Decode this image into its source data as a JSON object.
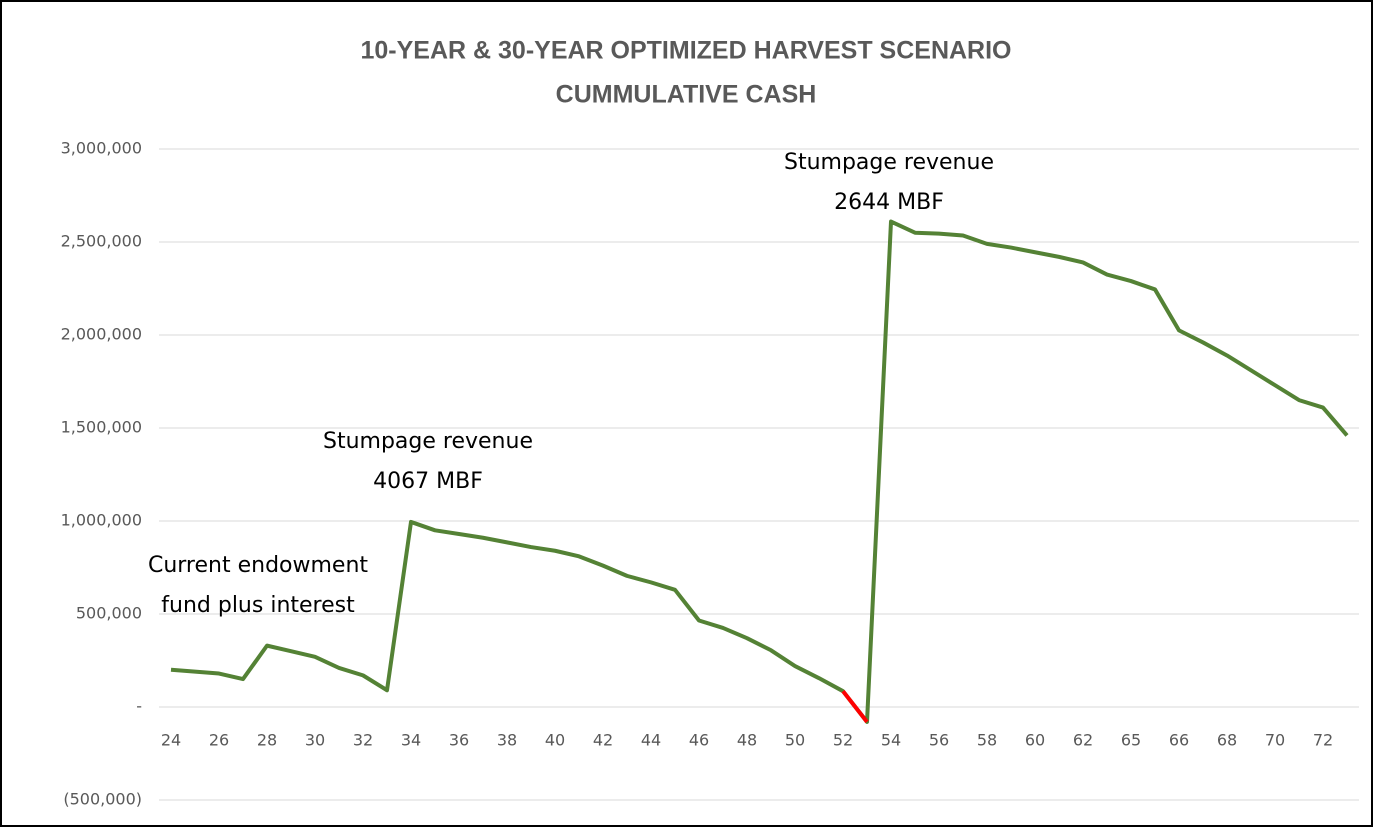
{
  "chart_data": {
    "type": "line",
    "title": [
      "10-YEAR & 30-YEAR OPTIMIZED HARVEST SCENARIO",
      "CUMMULATIVE CASH"
    ],
    "categories": [
      "24",
      null,
      "26",
      null,
      "28",
      null,
      "30",
      null,
      "32",
      null,
      "34",
      null,
      "36",
      null,
      "38",
      null,
      "40",
      null,
      "42",
      null,
      "44",
      null,
      "46",
      null,
      "48",
      null,
      "50",
      null,
      "52",
      null,
      "54",
      null,
      "56",
      null,
      "58",
      null,
      "60",
      null,
      "62",
      null,
      "65",
      null,
      "66",
      null,
      "68",
      null,
      "70",
      null,
      "72",
      null
    ],
    "series": [
      {
        "color": "#548235",
        "values": [
          200000,
          190000,
          180000,
          150000,
          330000,
          300000,
          270000,
          210000,
          170000,
          90000,
          995000,
          950000,
          930000,
          910000,
          885000,
          860000,
          840000,
          810000,
          760000,
          705000,
          670000,
          630000,
          465000,
          425000,
          370000,
          305000,
          220000,
          155000,
          85000,
          -80000,
          2610000,
          2550000,
          2545000,
          2535000,
          2490000,
          2470000,
          2445000,
          2420000,
          2390000,
          2325000,
          2290000,
          2245000,
          2025000,
          1960000,
          1890000,
          1810000,
          1730000,
          1650000,
          1610000,
          1460000
        ]
      },
      {
        "color": "#ff0000",
        "values": [
          null,
          null,
          null,
          null,
          null,
          null,
          null,
          null,
          null,
          null,
          null,
          null,
          null,
          null,
          null,
          null,
          null,
          null,
          null,
          null,
          null,
          null,
          null,
          null,
          null,
          null,
          null,
          null,
          85000,
          -80000,
          null,
          null,
          null,
          null,
          null,
          null,
          null,
          null,
          null,
          null,
          null,
          null,
          null,
          null,
          null,
          null,
          null,
          null,
          null,
          null
        ]
      }
    ],
    "ylim": [
      -500000,
      3000000
    ],
    "yticks": [
      {
        "value": -500000,
        "label": "(500,000)"
      },
      {
        "value": 0,
        "label": "-"
      },
      {
        "value": 500000,
        "label": "500,000"
      },
      {
        "value": 1000000,
        "label": "1,000,000"
      },
      {
        "value": 1500000,
        "label": "1,500,000"
      },
      {
        "value": 2000000,
        "label": "2,000,000"
      },
      {
        "value": 2500000,
        "label": "2,500,000"
      },
      {
        "value": 3000000,
        "label": "3,000,000"
      }
    ],
    "grid": true,
    "annotations": [
      {
        "lines": [
          "Current endowment",
          "fund plus interest"
        ]
      },
      {
        "lines": [
          "Stumpage revenue",
          "4067 MBF"
        ]
      },
      {
        "lines": [
          "Stumpage revenue",
          "2644 MBF"
        ]
      }
    ]
  }
}
